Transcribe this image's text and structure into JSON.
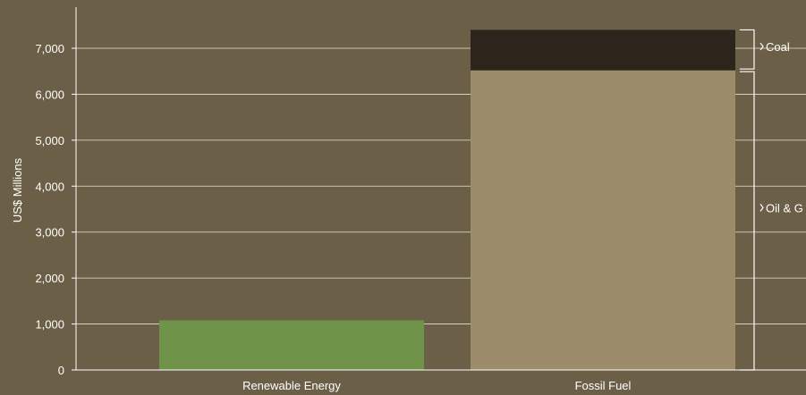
{
  "chart_data": {
    "type": "bar",
    "stacked": true,
    "ylabel": "US$ Millions",
    "ylim": [
      0,
      7800
    ],
    "yticks": [
      0,
      1000,
      2000,
      3000,
      4000,
      5000,
      6000,
      7000
    ],
    "ytick_labels": [
      "0",
      "1,000",
      "2,000",
      "3,000",
      "4,000",
      "5,000",
      "6,000",
      "7,000"
    ],
    "grid": true,
    "categories": [
      "Renewable Energy",
      "Fossil Fuel"
    ],
    "bars": [
      {
        "category": "Renewable Energy",
        "segments": [
          {
            "value": 1080,
            "color": "#6f9449"
          }
        ]
      },
      {
        "category": "Fossil Fuel",
        "segments": [
          {
            "name": "Oil & G",
            "value": 6520,
            "color": "#9c8c69"
          },
          {
            "name": "Coal",
            "value": 880,
            "color": "#2b251c"
          }
        ]
      }
    ],
    "annotations": [
      "Coal",
      "Oil & G"
    ],
    "colors": {
      "background": "#6b5f47",
      "axis": "#ffffff",
      "grid": "#e8e2d4",
      "text": "#ffffff"
    }
  }
}
